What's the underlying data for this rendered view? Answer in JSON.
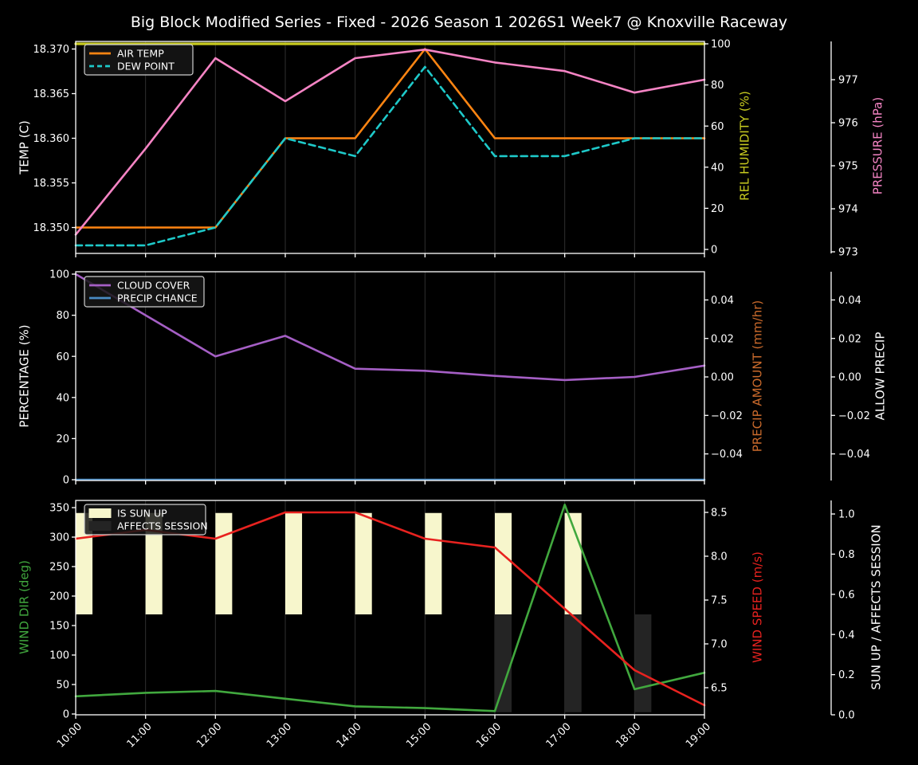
{
  "title": "Big Block Modified Series - Fixed - 2026 Season 1 2026S1 Week7 @ Knoxville Raceway",
  "colors": {
    "background": "#000000",
    "text": "#ffffff",
    "grid": "#2f2f2f",
    "spine": "#ffffff",
    "air_temp": "#ff8512",
    "dew_point": "#1ec9c9",
    "rel_humidity": "#c9cc20",
    "pressure": "#f584c4",
    "cloud_cover": "#a55fc5",
    "precip_chance": "#4a8bc4",
    "precip_amount": "#cc6b2c",
    "allow_precip": "#ffffff",
    "wind_dir": "#41a83e",
    "wind_speed": "#e8221f",
    "sun_up": "#f7f6cc",
    "affects_session": "#242424"
  },
  "x_axis": {
    "hours": [
      10,
      11,
      12,
      13,
      14,
      15,
      16,
      17,
      18,
      19
    ],
    "labels": [
      "10:00",
      "11:00",
      "12:00",
      "13:00",
      "14:00",
      "15:00",
      "16:00",
      "17:00",
      "18:00",
      "19:00"
    ]
  },
  "chart_data": [
    {
      "type": "line",
      "name": "temperature-humidity-pressure",
      "axes": {
        "temp": {
          "label": "TEMP (C)",
          "tick_values": [
            18.35,
            18.355,
            18.36,
            18.365,
            18.37
          ],
          "tick_labels": [
            "18.350",
            "18.355",
            "18.360",
            "18.365",
            "18.370"
          ]
        },
        "humidity": {
          "label": "REL HUMIDITY (%)",
          "tick_values": [
            0,
            20,
            40,
            60,
            80,
            100
          ],
          "tick_labels": [
            "0",
            "20",
            "40",
            "60",
            "80",
            "100"
          ]
        },
        "pressure": {
          "label": "PRESSURE (hPa)",
          "tick_values": [
            973,
            974,
            975,
            976,
            977
          ],
          "tick_labels": [
            "973",
            "974",
            "975",
            "976",
            "977"
          ]
        }
      },
      "series": [
        {
          "name": "AIR TEMP",
          "axis": "temp",
          "color_key": "air_temp",
          "line": "solid",
          "values": [
            18.35,
            18.35,
            18.35,
            18.36,
            18.36,
            18.37,
            18.36,
            18.36,
            18.36,
            18.36
          ]
        },
        {
          "name": "DEW POINT",
          "axis": "temp",
          "color_key": "dew_point",
          "line": "dashed",
          "values": [
            18.348,
            18.348,
            18.35,
            18.36,
            18.358,
            18.368,
            18.358,
            18.358,
            18.36,
            18.36
          ]
        },
        {
          "name": "REL HUMIDITY",
          "axis": "humidity",
          "color_key": "rel_humidity",
          "line": "solid",
          "values": [
            100,
            100,
            100,
            100,
            100,
            100,
            100,
            100,
            100,
            100
          ]
        },
        {
          "name": "PRESSURE",
          "axis": "pressure",
          "color_key": "pressure",
          "line": "solid",
          "values": [
            973.4,
            975.4,
            977.5,
            976.5,
            977.5,
            977.7,
            977.4,
            977.2,
            976.7,
            977.0
          ]
        }
      ],
      "legend": [
        {
          "label": "AIR TEMP",
          "color_key": "air_temp",
          "swatch": "line"
        },
        {
          "label": "DEW POINT",
          "color_key": "dew_point",
          "swatch": "dashed"
        }
      ]
    },
    {
      "type": "line",
      "name": "cloud-precip",
      "axes": {
        "pct": {
          "label": "PERCENTAGE (%)",
          "tick_values": [
            0,
            20,
            40,
            60,
            80,
            100
          ],
          "tick_labels": [
            "0",
            "20",
            "40",
            "60",
            "80",
            "100"
          ]
        },
        "precip": {
          "label": "PRECIP AMOUNT (mm/hr)",
          "tick_values": [
            -0.04,
            -0.02,
            0.0,
            0.02,
            0.04
          ],
          "tick_labels": [
            "−0.04",
            "−0.02",
            "0.00",
            "0.02",
            "0.04"
          ]
        },
        "allow": {
          "label": "ALLOW PRECIP",
          "tick_values": [
            -0.04,
            -0.02,
            0.0,
            0.02,
            0.04
          ],
          "tick_labels": [
            "−0.04",
            "−0.02",
            "0.00",
            "0.02",
            "0.04"
          ]
        }
      },
      "series": [
        {
          "name": "CLOUD COVER",
          "axis": "pct",
          "color_key": "cloud_cover",
          "line": "solid",
          "values": [
            100,
            80,
            60,
            70,
            54,
            53,
            50.5,
            48.5,
            50,
            55.5
          ]
        },
        {
          "name": "PRECIP CHANCE",
          "axis": "pct",
          "color_key": "precip_chance",
          "line": "solid",
          "values": [
            0,
            0,
            0,
            0,
            0,
            0,
            0,
            0,
            0,
            0
          ]
        }
      ],
      "legend": [
        {
          "label": "CLOUD COVER",
          "color_key": "cloud_cover",
          "swatch": "line"
        },
        {
          "label": "PRECIP CHANCE",
          "color_key": "precip_chance",
          "swatch": "line"
        }
      ]
    },
    {
      "type": "line-bar",
      "name": "wind-sun",
      "axes": {
        "dir": {
          "label": "WIND DIR (deg)",
          "tick_values": [
            0,
            50,
            100,
            150,
            200,
            250,
            300,
            350
          ],
          "tick_labels": [
            "0",
            "50",
            "100",
            "150",
            "200",
            "250",
            "300",
            "350"
          ]
        },
        "speed": {
          "label": "WIND SPEED (m/s)",
          "tick_values": [
            6.5,
            7.0,
            7.5,
            8.0,
            8.5
          ],
          "tick_labels": [
            "6.5",
            "7.0",
            "7.5",
            "8.0",
            "8.5"
          ]
        },
        "sun": {
          "label": "SUN UP / AFFECTS SESSION",
          "tick_values": [
            0.0,
            0.2,
            0.4,
            0.6,
            0.8,
            1.0
          ],
          "tick_labels": [
            "0.0",
            "0.2",
            "0.4",
            "0.6",
            "0.8",
            "1.0"
          ]
        }
      },
      "bars": [
        {
          "name": "IS SUN UP",
          "color_key": "sun_up",
          "axis": "sun",
          "hours": [
            10,
            11,
            12,
            13,
            14,
            15,
            16,
            17
          ],
          "span": [
            0.5,
            1.005
          ]
        },
        {
          "name": "AFFECTS SESSION",
          "color_key": "affects_session",
          "axis": "sun",
          "hours": [
            16,
            17,
            18
          ],
          "span": [
            0.013,
            0.5
          ]
        }
      ],
      "bar_width_hours": 0.24,
      "series": [
        {
          "name": "WIND DIR",
          "axis": "dir",
          "color_key": "wind_dir",
          "line": "solid",
          "values": [
            30,
            36,
            39,
            26,
            13,
            10,
            5,
            355,
            42,
            70
          ]
        },
        {
          "name": "WIND SPEED",
          "axis": "speed",
          "color_key": "wind_speed",
          "line": "solid",
          "values": [
            8.2,
            8.3,
            8.2,
            8.5,
            8.5,
            8.2,
            8.1,
            7.4,
            6.7,
            6.3
          ]
        }
      ],
      "legend": [
        {
          "label": "IS SUN UP",
          "color_key": "sun_up",
          "swatch": "patch"
        },
        {
          "label": "AFFECTS SESSION",
          "color_key": "affects_session",
          "swatch": "patch"
        }
      ]
    }
  ]
}
